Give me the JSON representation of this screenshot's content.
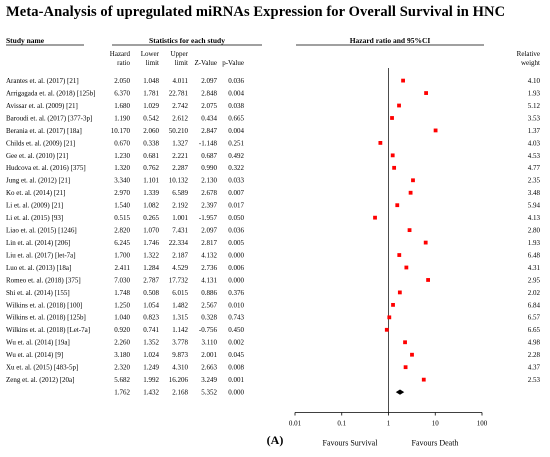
{
  "title": "Meta-Analysis of upregulated miRNAs Expression for Overall  Survival  in HNC",
  "panel_label": "(A)",
  "headers": {
    "study_name": "Study name",
    "stats_group": "Statistics for each study",
    "hazard_ratio": [
      "Hazard",
      "ratio"
    ],
    "lower_limit": [
      "Lower",
      "limit"
    ],
    "upper_limit": [
      "Upper",
      "limit"
    ],
    "z_value": "Z-Value",
    "p_value": "p-Value",
    "plot_group": "Hazard ratio and 95%CI",
    "relative_weight": [
      "Relative",
      "weight"
    ]
  },
  "footer": {
    "favours_left": "Favours Survival",
    "favours_right": "Favours Death"
  },
  "chart_data": {
    "type": "forest",
    "x_scale": "log",
    "x_ticks": [
      "0.01",
      "0.1",
      "1",
      "10",
      "100"
    ],
    "marker_color": "#ff0000",
    "summary_marker_color": "#000000",
    "studies": [
      {
        "name": "Arantes et. al. (2017) [21]",
        "hr": "2.050",
        "lower": "1.048",
        "upper": "4.011",
        "z": "2.097",
        "p": "0.036",
        "weight": "4.10"
      },
      {
        "name": "Arrigagada et. al. (2018) [125b]",
        "hr": "6.370",
        "lower": "1.781",
        "upper": "22.781",
        "z": "2.848",
        "p": "0.004",
        "weight": "1.93"
      },
      {
        "name": "Avissar et. al. (2009) [21]",
        "hr": "1.680",
        "lower": "1.029",
        "upper": "2.742",
        "z": "2.075",
        "p": "0.038",
        "weight": "5.12"
      },
      {
        "name": "Baroudi et. al. (2017) [377-3p]",
        "hr": "1.190",
        "lower": "0.542",
        "upper": "2.612",
        "z": "0.434",
        "p": "0.665",
        "weight": "3.53"
      },
      {
        "name": "Berania et. al. (2017) [18a]",
        "hr": "10.170",
        "lower": "2.060",
        "upper": "50.210",
        "z": "2.847",
        "p": "0.004",
        "weight": "1.37"
      },
      {
        "name": "Childs et. al. (2009) [21]",
        "hr": "0.670",
        "lower": "0.338",
        "upper": "1.327",
        "z": "-1.148",
        "p": "0.251",
        "weight": "4.03"
      },
      {
        "name": "Gee et. al. (2010) [21]",
        "hr": "1.230",
        "lower": "0.681",
        "upper": "2.221",
        "z": "0.687",
        "p": "0.492",
        "weight": "4.53"
      },
      {
        "name": "Hudcova et. al. (2016) [375]",
        "hr": "1.320",
        "lower": "0.762",
        "upper": "2.287",
        "z": "0.990",
        "p": "0.322",
        "weight": "4.77"
      },
      {
        "name": "Jung et. al. (2012) [21]",
        "hr": "3.340",
        "lower": "1.101",
        "upper": "10.132",
        "z": "2.130",
        "p": "0.033",
        "weight": "2.35"
      },
      {
        "name": "Ko et. al. (2014) [21]",
        "hr": "2.970",
        "lower": "1.339",
        "upper": "6.589",
        "z": "2.678",
        "p": "0.007",
        "weight": "3.48"
      },
      {
        "name": "Li et. al. (2009) [21]",
        "hr": "1.540",
        "lower": "1.082",
        "upper": "2.192",
        "z": "2.397",
        "p": "0.017",
        "weight": "5.94"
      },
      {
        "name": "Li et. al. (2015) [93]",
        "hr": "0.515",
        "lower": "0.265",
        "upper": "1.001",
        "z": "-1.957",
        "p": "0.050",
        "weight": "4.13"
      },
      {
        "name": "Liao et. al. (2015) [1246]",
        "hr": "2.820",
        "lower": "1.070",
        "upper": "7.431",
        "z": "2.097",
        "p": "0.036",
        "weight": "2.80"
      },
      {
        "name": "Lin et. al. (2014) [206]",
        "hr": "6.245",
        "lower": "1.746",
        "upper": "22.334",
        "z": "2.817",
        "p": "0.005",
        "weight": "1.93"
      },
      {
        "name": "Liu et. al. (2017) [let-7a]",
        "hr": "1.700",
        "lower": "1.322",
        "upper": "2.187",
        "z": "4.132",
        "p": "0.000",
        "weight": "6.48"
      },
      {
        "name": "Luo et. al. (2013) [18a]",
        "hr": "2.411",
        "lower": "1.284",
        "upper": "4.529",
        "z": "2.736",
        "p": "0.006",
        "weight": "4.31"
      },
      {
        "name": "Romeo et. al. (2018) [375]",
        "hr": "7.030",
        "lower": "2.787",
        "upper": "17.732",
        "z": "4.131",
        "p": "0.000",
        "weight": "2.95"
      },
      {
        "name": "Shi et. al. (2014) [155]",
        "hr": "1.748",
        "lower": "0.508",
        "upper": "6.015",
        "z": "0.886",
        "p": "0.376",
        "weight": "2.02"
      },
      {
        "name": "Wilkins et. al. (2018) [100]",
        "hr": "1.250",
        "lower": "1.054",
        "upper": "1.482",
        "z": "2.567",
        "p": "0.010",
        "weight": "6.84"
      },
      {
        "name": "Wilkins et. al. (2018) [125b]",
        "hr": "1.040",
        "lower": "0.823",
        "upper": "1.315",
        "z": "0.328",
        "p": "0.743",
        "weight": "6.57"
      },
      {
        "name": "Wilkins et. al. (2018) [Let-7a]",
        "hr": "0.920",
        "lower": "0.741",
        "upper": "1.142",
        "z": "-0.756",
        "p": "0.450",
        "weight": "6.65"
      },
      {
        "name": "Wu et. al. (2014) [19a]",
        "hr": "2.260",
        "lower": "1.352",
        "upper": "3.778",
        "z": "3.110",
        "p": "0.002",
        "weight": "4.98"
      },
      {
        "name": "Wu et. al. (2014) [9]",
        "hr": "3.180",
        "lower": "1.024",
        "upper": "9.873",
        "z": "2.001",
        "p": "0.045",
        "weight": "2.28"
      },
      {
        "name": "Xu et. al. (2015) [483-5p]",
        "hr": "2.320",
        "lower": "1.249",
        "upper": "4.310",
        "z": "2.663",
        "p": "0.008",
        "weight": "4.37"
      },
      {
        "name": "Zeng et. al. (2012) [20a]",
        "hr": "5.682",
        "lower": "1.992",
        "upper": "16.206",
        "z": "3.249",
        "p": "0.001",
        "weight": "2.53"
      }
    ],
    "summary": {
      "hr": "1.762",
      "lower": "1.432",
      "upper": "2.168",
      "z": "5.352",
      "p": "0.000"
    }
  }
}
